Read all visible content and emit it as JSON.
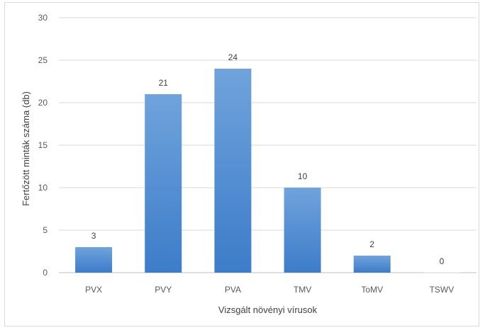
{
  "chart_data": {
    "type": "bar",
    "title": "",
    "xlabel": "Vizsgált növényi vírusok",
    "ylabel": "Fertőzött minták száma (db)",
    "categories": [
      "PVX",
      "PVY",
      "PVA",
      "TMV",
      "ToMV",
      "TSWV"
    ],
    "values": [
      3,
      21,
      24,
      10,
      2,
      0
    ],
    "data_labels": [
      "3",
      "21",
      "24",
      "10",
      "2",
      "0"
    ],
    "yticks": [
      "0",
      "5",
      "10",
      "15",
      "20",
      "25",
      "30"
    ],
    "ylim": [
      0,
      30
    ],
    "grid": true,
    "legend": "none",
    "colors": {
      "bar_top": "#6fa3dc",
      "bar_bottom": "#3d7cc9",
      "grid": "#d9d9d9",
      "axis": "#bfbfbf"
    }
  }
}
